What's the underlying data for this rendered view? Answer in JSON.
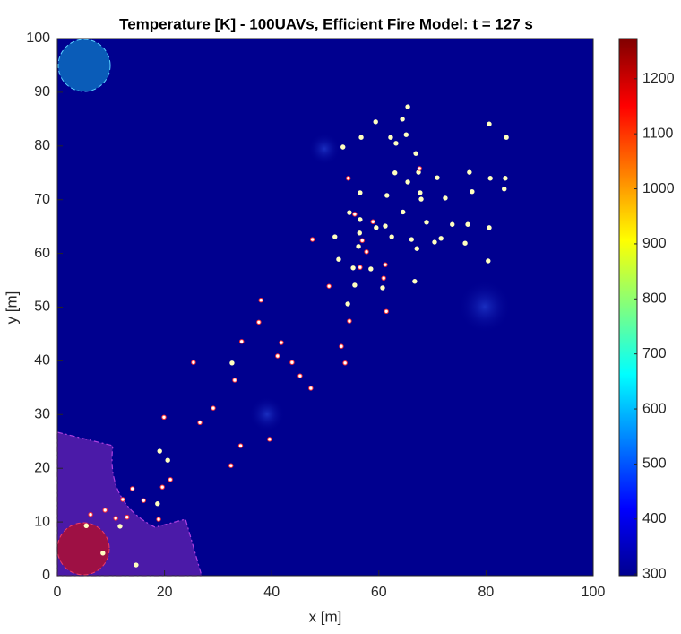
{
  "chart_data": {
    "type": "scatter",
    "title": "Temperature [K] - 100UAVs, Efficient Fire Model: t = 127 s",
    "x_label": "x [m]",
    "y_label": "y [m]",
    "xlim": [
      0,
      100
    ],
    "ylim": [
      0,
      100
    ],
    "xticks": [
      0,
      20,
      40,
      60,
      80,
      100
    ],
    "yticks": [
      0,
      10,
      20,
      30,
      40,
      50,
      60,
      70,
      80,
      90,
      100
    ],
    "background": "#00008f",
    "colorbar": {
      "lim": [
        297,
        1273
      ],
      "ticks": [
        300,
        400,
        500,
        600,
        700,
        800,
        900,
        1000,
        1100,
        1200
      ]
    },
    "series": [
      {
        "color": "#ffffc0",
        "edge": "#ffffc0",
        "x": [
          65.4,
          59.4,
          64.4,
          80.6,
          56.7,
          62.2,
          65.1,
          83.8,
          63.2,
          53.3,
          66.9,
          63.0,
          67.4,
          76.9,
          65.4,
          70.9,
          80.8,
          83.6,
          83.4,
          56.5,
          61.5,
          67.7,
          67.9,
          72.4,
          77.4,
          54.5,
          64.5,
          56.5,
          68.9,
          73.7,
          76.6,
          59.5,
          61.2,
          71.6,
          80.6,
          56.4,
          62.4,
          66.1,
          70.4,
          76.1,
          51.8,
          56.2,
          67.1,
          52.5,
          80.4,
          55.2,
          58.5,
          55.5,
          66.7,
          54.2,
          60.7,
          32.6,
          19.1,
          20.6,
          18.7,
          5.4,
          8.5,
          14.7,
          11.7
        ],
        "y": [
          87.3,
          84.5,
          85.0,
          84.1,
          81.6,
          81.6,
          82.1,
          81.6,
          80.5,
          79.8,
          78.6,
          75.0,
          75.1,
          75.1,
          73.3,
          74.1,
          74.0,
          74.0,
          72.0,
          71.3,
          70.8,
          71.3,
          70.1,
          70.3,
          71.5,
          67.6,
          67.7,
          66.3,
          65.8,
          65.4,
          65.4,
          64.8,
          65.1,
          62.8,
          64.8,
          63.8,
          63.1,
          62.6,
          62.1,
          61.9,
          63.1,
          61.3,
          60.9,
          58.9,
          58.6,
          57.3,
          57.1,
          54.1,
          54.8,
          50.6,
          53.6,
          39.6,
          23.2,
          21.5,
          13.4,
          9.3,
          4.2,
          2.0,
          9.2
        ]
      },
      {
        "color": "#ffffff",
        "edge": "#ff3030",
        "x": [
          67.6,
          54.3,
          55.5,
          56.9,
          47.6,
          58.9,
          57.7,
          61.2,
          56.5,
          60.9,
          50.7,
          38.0,
          61.4,
          54.5,
          37.6,
          34.4,
          41.8,
          53.0,
          41.1,
          25.4,
          53.7,
          43.8,
          45.3,
          33.1,
          47.3,
          29.1,
          19.9,
          26.6,
          34.2,
          39.6,
          32.4,
          21.1,
          19.6,
          14.0,
          16.1,
          12.2,
          8.9,
          6.2,
          10.9,
          13.0,
          18.9
        ],
        "y": [
          75.8,
          74.0,
          67.3,
          62.4,
          62.6,
          65.9,
          60.3,
          57.9,
          57.4,
          55.4,
          53.9,
          51.3,
          49.2,
          47.4,
          47.2,
          43.6,
          43.4,
          42.7,
          40.9,
          39.7,
          39.6,
          39.7,
          37.2,
          36.4,
          34.9,
          31.2,
          29.5,
          28.5,
          24.2,
          25.4,
          20.5,
          17.9,
          16.5,
          16.2,
          14.0,
          14.2,
          12.2,
          11.4,
          10.7,
          10.9,
          10.5
        ]
      }
    ]
  }
}
